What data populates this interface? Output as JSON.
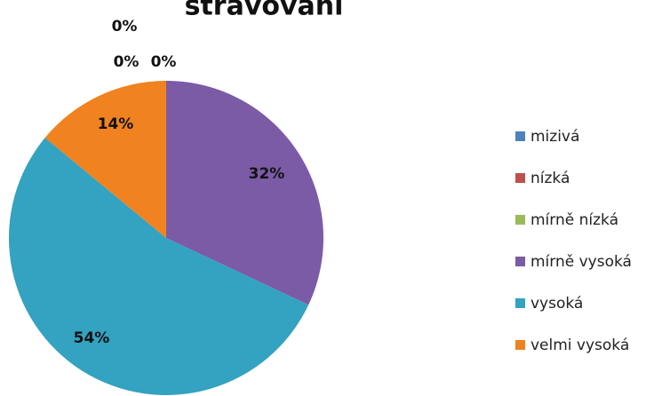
{
  "chart_data": {
    "type": "pie",
    "title": "stravování",
    "categories": [
      "mizivá",
      "nízká",
      "mírně nízká",
      "mírně vysoká",
      "vysoká",
      "velmi vysoká"
    ],
    "values": [
      0,
      0,
      0,
      32,
      54,
      14
    ],
    "value_labels": [
      "0%",
      "0%",
      "0%",
      "32%",
      "54%",
      "14%"
    ],
    "colors": [
      "#4f81bd",
      "#c0504d",
      "#9bbb59",
      "#7b5aa6",
      "#34a2c1",
      "#f0821f"
    ],
    "legend": "right"
  }
}
